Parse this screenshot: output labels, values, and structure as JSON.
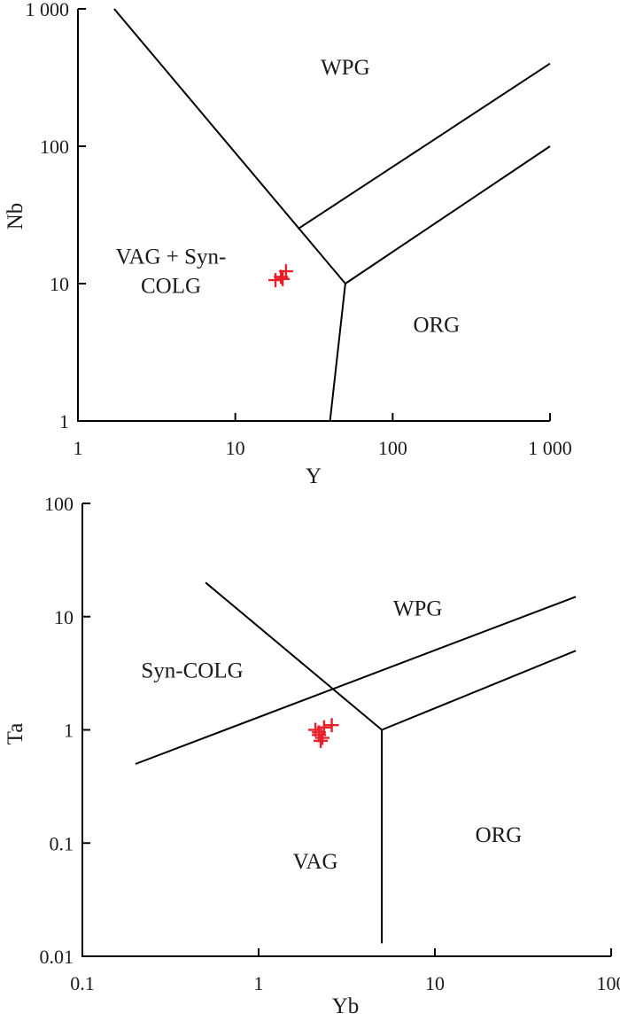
{
  "chart_data": [
    {
      "type": "scatter",
      "scale": "log-log",
      "xlabel": "Y",
      "ylabel": "Nb",
      "xlim": [
        1,
        1000
      ],
      "ylim": [
        1,
        1000
      ],
      "xticks": [
        1,
        10,
        100,
        1000
      ],
      "yticks": [
        1,
        10,
        100,
        1000
      ],
      "xtick_labels": [
        "1",
        "10",
        "100",
        "1 000"
      ],
      "ytick_labels": [
        "1",
        "10",
        "100",
        "1 000"
      ],
      "fields": [
        {
          "lines": [
            "WPG"
          ],
          "x": 50,
          "y": 380
        },
        {
          "lines": [
            "VAG + Syn-",
            "COLG"
          ],
          "x": 3.9,
          "y": 12.5
        },
        {
          "lines": [
            "ORG"
          ],
          "x": 190,
          "y": 5.1
        }
      ],
      "boundaries": [
        {
          "points": [
            [
              1.7,
              1000
            ],
            [
              50,
              10
            ]
          ]
        },
        {
          "points": [
            [
              25,
              25
            ],
            [
              1000,
              400
            ]
          ]
        },
        {
          "points": [
            [
              50,
              10
            ],
            [
              1000,
              100
            ]
          ]
        },
        {
          "points": [
            [
              50,
              10
            ],
            [
              40,
              1
            ]
          ]
        }
      ],
      "points": [
        {
          "x": 18,
          "y": 10.6
        },
        {
          "x": 19.5,
          "y": 11.2
        },
        {
          "x": 21,
          "y": 12.3
        },
        {
          "x": 20,
          "y": 10.8
        }
      ],
      "marker": "cross",
      "marker_color": "#e8202a"
    },
    {
      "type": "scatter",
      "scale": "log-log",
      "xlabel": "Yb",
      "ylabel": "Ta",
      "xlim": [
        0.1,
        100
      ],
      "ylim": [
        0.01,
        100
      ],
      "xticks": [
        0.1,
        1,
        10,
        100
      ],
      "yticks": [
        0.01,
        0.1,
        1,
        10,
        100
      ],
      "xtick_labels": [
        "0.1",
        "1",
        "10",
        "100"
      ],
      "ytick_labels": [
        "0.01",
        "0.1",
        "1",
        "10",
        "100"
      ],
      "fields": [
        {
          "lines": [
            "WPG"
          ],
          "x": 8,
          "y": 12
        },
        {
          "lines": [
            "Syn-COLG"
          ],
          "x": 0.42,
          "y": 3.4
        },
        {
          "lines": [
            "VAG"
          ],
          "x": 2.1,
          "y": 0.07
        },
        {
          "lines": [
            "ORG"
          ],
          "x": 23,
          "y": 0.12
        }
      ],
      "boundaries": [
        {
          "points": [
            [
              0.5,
              20
            ],
            [
              5,
              1
            ]
          ]
        },
        {
          "points": [
            [
              0.2,
              0.5
            ],
            [
              63,
              15
            ]
          ]
        },
        {
          "points": [
            [
              5,
              1
            ],
            [
              63,
              5
            ]
          ]
        },
        {
          "points": [
            [
              5,
              1
            ],
            [
              5,
              0.013
            ]
          ]
        }
      ],
      "points": [
        {
          "x": 2.1,
          "y": 1.0
        },
        {
          "x": 2.2,
          "y": 0.9
        },
        {
          "x": 2.3,
          "y": 0.85
        },
        {
          "x": 2.25,
          "y": 0.8
        },
        {
          "x": 2.35,
          "y": 1.05
        },
        {
          "x": 2.6,
          "y": 1.1
        },
        {
          "x": 2.2,
          "y": 0.95
        }
      ],
      "marker": "cross",
      "marker_color": "#e8202a"
    }
  ]
}
